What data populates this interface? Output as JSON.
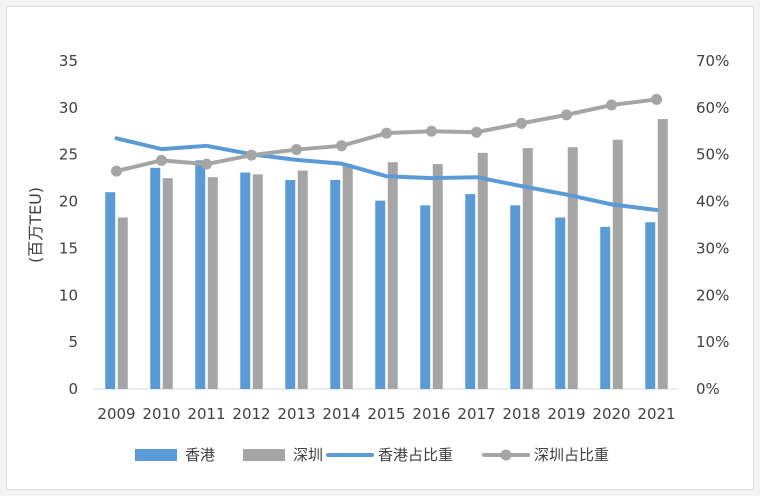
{
  "chart_data": {
    "type": "bar",
    "categories": [
      "2009",
      "2010",
      "2011",
      "2012",
      "2013",
      "2014",
      "2015",
      "2016",
      "2017",
      "2018",
      "2019",
      "2020",
      "2021"
    ],
    "ylabel": "(百万TEU)",
    "ylim": [
      0,
      35
    ],
    "yticks": [
      "0",
      "5",
      "10",
      "15",
      "20",
      "25",
      "30",
      "35"
    ],
    "y2lim": [
      0,
      70
    ],
    "y2ticks": [
      "0%",
      "10%",
      "20%",
      "30%",
      "40%",
      "50%",
      "60%",
      "70%"
    ],
    "grid": false,
    "legend_position": "bottom",
    "series": [
      {
        "name": "香港",
        "type": "bar",
        "axis": "left",
        "color": "#5b9bd5",
        "values": [
          21.0,
          23.6,
          24.4,
          23.1,
          22.3,
          22.3,
          20.1,
          19.6,
          20.8,
          19.6,
          18.3,
          17.3,
          17.8
        ]
      },
      {
        "name": "深圳",
        "type": "bar",
        "axis": "left",
        "color": "#a5a5a5",
        "values": [
          18.3,
          22.5,
          22.6,
          22.9,
          23.3,
          24.0,
          24.2,
          24.0,
          25.2,
          25.7,
          25.8,
          26.6,
          28.8
        ]
      },
      {
        "name": "香港占比重",
        "type": "line",
        "axis": "right",
        "color": "#5b9bd5",
        "values": [
          53.5,
          51.2,
          51.9,
          50.1,
          48.9,
          48.1,
          45.4,
          45.0,
          45.2,
          43.3,
          41.5,
          39.4,
          38.2
        ]
      },
      {
        "name": "深圳占比重",
        "type": "line",
        "axis": "right",
        "marker": "circle",
        "color": "#a5a5a5",
        "values": [
          46.5,
          48.8,
          48.0,
          49.9,
          51.1,
          51.9,
          54.6,
          55.0,
          54.8,
          56.7,
          58.5,
          60.6,
          61.8
        ]
      }
    ]
  }
}
